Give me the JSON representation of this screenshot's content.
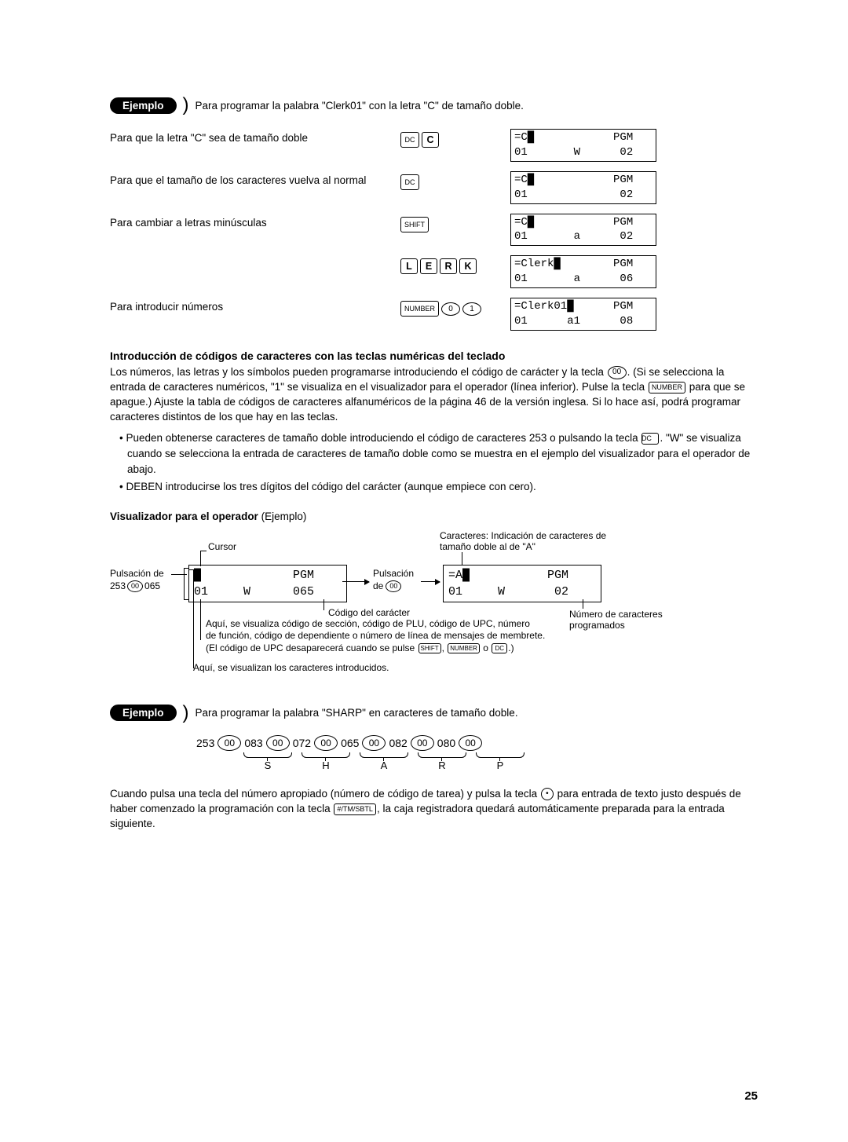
{
  "example1": {
    "label": "Ejemplo",
    "intro": "Para programar la palabra \"Clerk01\" con la letra \"C\" de tamaño doble."
  },
  "steps": [
    {
      "desc": "Para que la letra \"C\" sea de tamaño doble",
      "keys": [
        "DC",
        "C"
      ],
      "key_styles": [
        "box-sm",
        "box-big"
      ],
      "disp_l1": "=C█            PGM",
      "disp_l2": "01       W      02"
    },
    {
      "desc": "Para que el tamaño de los caracteres vuelva al normal",
      "keys": [
        "DC"
      ],
      "key_styles": [
        "box-sm"
      ],
      "disp_l1": "=C█            PGM",
      "disp_l2": "01              02"
    },
    {
      "desc": "Para cambiar a letras minúsculas",
      "keys": [
        "SHIFT"
      ],
      "key_styles": [
        "box-sm"
      ],
      "disp_l1": "=C█            PGM",
      "disp_l2": "01       a      02"
    },
    {
      "desc": "",
      "keys": [
        "L",
        "E",
        "R",
        "K"
      ],
      "key_styles": [
        "box-big",
        "box-big",
        "box-big",
        "box-big"
      ],
      "disp_l1": "=Clerk█        PGM",
      "disp_l2": "01       a      06"
    },
    {
      "desc": "Para introducir números",
      "keys": [
        "NUMBER",
        "0",
        "1"
      ],
      "key_styles": [
        "box-sm",
        "oval",
        "oval"
      ],
      "disp_l1": "=Clerk01█      PGM",
      "disp_l2": "01      a1      08"
    }
  ],
  "section2": {
    "heading": "Introducción de códigos de caracteres con las teclas numéricas del teclado",
    "para1a": "Los números, las letras y los símbolos pueden programarse introduciendo el código de carácter y la tecla ",
    "para1b": ". (Si se selecciona la entrada de caracteres numéricos, \"1\" se visualiza en el visualizador para el operador (línea inferior). Pulse la tecla ",
    "para1c": " para que se apague.) Ajuste la tabla de códigos de caracteres alfanuméricos de la página 46 de la versión inglesa. Si lo hace así, podrá programar caracteres distintos de los que hay en las teclas.",
    "bullet1a": "Pueden obtenerse caracteres de tamaño doble introduciendo el código de caracteres 253 o pulsando la tecla ",
    "bullet1b": ". \"W\" se visualiza cuando se selecciona la entrada de caracteres de tamaño doble como se muestra en el ejemplo del visualizador para el operador de abajo.",
    "bullet2": "DEBEN introducirse los tres dígitos del código del carácter (aunque empiece con cero).",
    "key_00": "00",
    "key_number": "NUMBER",
    "key_dc": "DC",
    "key_shift": "SHIFT"
  },
  "visualizer": {
    "heading_bold": "Visualizador para el operador",
    "heading_rest": " (Ejemplo)",
    "label_cursor": "Cursor",
    "label_pulsacion_de": "Pulsación de",
    "label_253_065": "253      065",
    "label_pulsacion": "Pulsación",
    "label_de": "de",
    "label_chars1": "Caracteres: Indicación de caracteres de",
    "label_chars2": "tamaño doble al de \"A\"",
    "label_codigo": "Código del carácter",
    "label_num_chars1": "Número de caracteres",
    "label_num_chars2": "programados",
    "label_aqui1a": "Aquí, se visualiza código de sección, código de PLU, código de UPC, número",
    "label_aqui1b": "de función, código de dependiente o número de línea de mensajes de membrete.",
    "label_aqui1c": "(El código de UPC desaparecerá cuando se pulse ",
    "label_aqui1d": " o ",
    "label_aqui1e": ".)",
    "label_aqui2": "Aquí, se visualizan los caracteres introducidos.",
    "disp1_l1": "█             PGM",
    "disp1_l2": "01     W      065",
    "disp2_l1": "=A█           PGM",
    "disp2_l2": "01     W       02"
  },
  "example2": {
    "label": "Ejemplo",
    "intro": "Para programar la palabra \"SHARP\" en caracteres de tamaño doble.",
    "seq": [
      "253",
      "00",
      "083",
      "00",
      "072",
      "00",
      "065",
      "00",
      "082",
      "00",
      "080",
      "00"
    ],
    "letters": [
      "S",
      "H",
      "A",
      "R",
      "P"
    ]
  },
  "closing": {
    "part1": "Cuando pulsa una tecla del número apropiado (número de código de tarea) y pulsa la tecla ",
    "part2": " para entrada de texto justo después de haber comenzado la programación con la tecla ",
    "part3": ", la caja registradora quedará automáticamente preparada para la entrada siguiente.",
    "key_dot": "•",
    "key_tmsbtl": "#/TM/SBTL"
  },
  "page_number": "25"
}
